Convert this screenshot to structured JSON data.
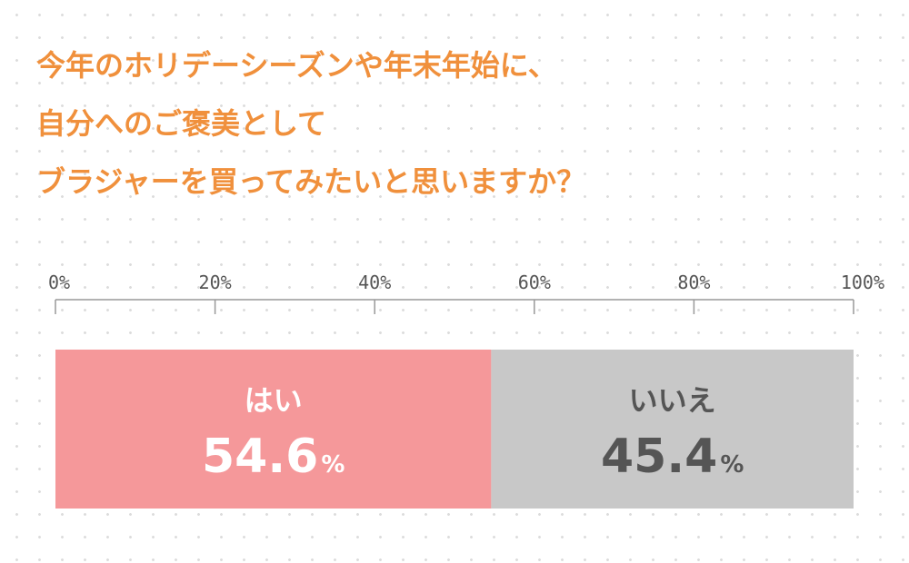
{
  "title_lines": [
    "今年のホリデーシーズンや年末年始に、",
    "自分へのご褒美として",
    "ブラジャーを買ってみたいと思いますか？"
  ],
  "colors": {
    "title": "#f0903c",
    "yes": "#f5989a",
    "no": "#c8c8c8",
    "yes_text": "#ffffff",
    "no_text": "#555555",
    "axis": "#999999"
  },
  "chart_data": {
    "type": "bar",
    "orientation": "horizontal-stacked",
    "xlim": [
      0,
      100
    ],
    "ticks": [
      "0%",
      "20%",
      "40%",
      "60%",
      "80%",
      "100%"
    ],
    "tick_values": [
      0,
      20,
      40,
      60,
      80,
      100
    ],
    "series": [
      {
        "name": "はい",
        "value": 54.6,
        "value_text": "54.6",
        "unit": "%"
      },
      {
        "name": "いいえ",
        "value": 45.4,
        "value_text": "45.4",
        "unit": "%"
      }
    ],
    "grid": false
  }
}
